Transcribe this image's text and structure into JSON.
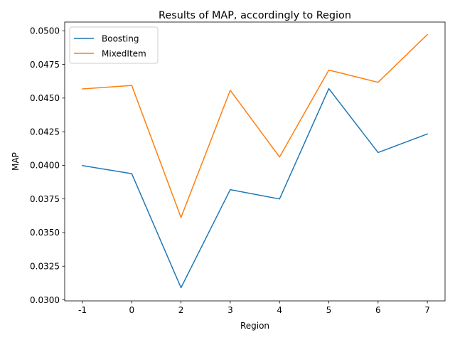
{
  "chart_data": {
    "type": "line",
    "title": "Results of MAP, accordingly to Region",
    "xlabel": "Region",
    "ylabel": "MAP",
    "categories": [
      "-1",
      "0",
      "2",
      "3",
      "4",
      "5",
      "6",
      "7"
    ],
    "y_ticks": [
      "0.0300",
      "0.0325",
      "0.0350",
      "0.0375",
      "0.0400",
      "0.0425",
      "0.0450",
      "0.0475",
      "0.0500"
    ],
    "ylim": [
      0.02992,
      0.05065
    ],
    "grid": false,
    "legend_position": "top-left",
    "series": [
      {
        "name": "Boosting",
        "color": "#1f77b4",
        "values": [
          0.03998,
          0.03938,
          0.0309,
          0.03819,
          0.0375,
          0.0457,
          0.04095,
          0.04233
        ]
      },
      {
        "name": "MixedItem",
        "color": "#ff7f0e",
        "values": [
          0.04568,
          0.04594,
          0.03612,
          0.04558,
          0.04062,
          0.04708,
          0.04617,
          0.04972
        ]
      }
    ]
  }
}
